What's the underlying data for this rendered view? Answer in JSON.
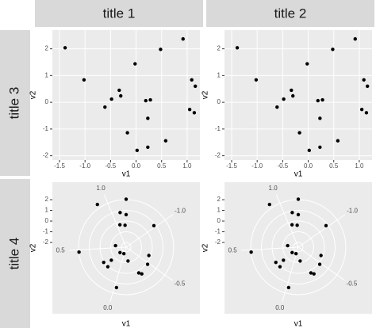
{
  "facet_columns": [
    "title 1",
    "title 2"
  ],
  "facet_rows": [
    "title 3",
    "title 4"
  ],
  "chart_data": [
    {
      "type": "scatter",
      "x_label": "v1",
      "y_label": "v2",
      "x": [
        -1.39,
        -1.02,
        -0.61,
        -0.48,
        -0.33,
        -0.3,
        -0.17,
        -0.02,
        0.02,
        0.19,
        0.28,
        0.23,
        0.23,
        0.48,
        0.58,
        0.92,
        1.05,
        1.09,
        1.14,
        1.16
      ],
      "y": [
        2.04,
        0.84,
        -0.18,
        0.12,
        0.45,
        0.24,
        -1.14,
        1.44,
        -1.8,
        0.06,
        0.09,
        -0.6,
        -1.68,
        1.98,
        -1.44,
        2.37,
        -0.27,
        0.84,
        -0.39,
        0.6
      ],
      "xlim": [
        -1.64,
        1.25
      ],
      "ylim": [
        -2.16,
        2.7
      ],
      "xticks": [
        -1.5,
        {
          "value": -1,
          "label": "-1.0"
        },
        -0.5,
        {
          "value": 0,
          "label": "0.0"
        },
        0.5,
        {
          "value": 1,
          "label": "1.0"
        }
      ],
      "yticks": [
        -2,
        -1,
        0,
        1,
        2
      ]
    },
    {
      "type": "scatter",
      "x_label": "v1",
      "y_label": "v2",
      "x": [
        -1.39,
        -1.02,
        -0.61,
        -0.48,
        -0.33,
        -0.3,
        -0.17,
        -0.02,
        0.02,
        0.19,
        0.28,
        0.23,
        0.23,
        0.48,
        0.58,
        0.92,
        1.05,
        1.09,
        1.14,
        1.16
      ],
      "y": [
        2.04,
        0.84,
        -0.18,
        0.12,
        0.45,
        0.24,
        -1.14,
        1.44,
        -1.8,
        0.06,
        0.09,
        -0.6,
        -1.68,
        1.98,
        -1.44,
        2.37,
        -0.27,
        0.84,
        -0.39,
        0.6
      ],
      "xlim": [
        -1.64,
        1.25
      ],
      "ylim": [
        -2.16,
        2.7
      ],
      "xticks": [
        -1.5,
        {
          "value": -1,
          "label": "-1.0"
        },
        -0.5,
        {
          "value": 0,
          "label": "0.0"
        },
        0.5,
        {
          "value": 1,
          "label": "1.0"
        }
      ],
      "yticks": [
        -2,
        -1,
        0,
        1,
        2
      ]
    },
    {
      "type": "polar",
      "x_label": "v1",
      "y_label": "v2",
      "x": [
        -1.39,
        -1.02,
        -0.61,
        -0.48,
        -0.33,
        -0.3,
        -0.17,
        -0.02,
        0.02,
        0.19,
        0.28,
        0.23,
        0.23,
        0.48,
        0.58,
        0.92,
        1.05,
        1.09,
        1.14,
        1.16
      ],
      "y": [
        2.04,
        0.84,
        -0.18,
        0.12,
        0.45,
        0.24,
        -1.14,
        1.44,
        -1.8,
        0.06,
        0.09,
        -0.6,
        -1.68,
        1.98,
        -1.44,
        2.37,
        -0.27,
        0.84,
        -0.39,
        0.6
      ],
      "thetalim": [
        -1.39,
        1.16
      ],
      "rlim": [
        -2.44,
        2.89
      ],
      "thetaticks": [
        {
          "value": -1,
          "label": "-1.0"
        },
        -0.5,
        {
          "value": 0,
          "label": "0.0"
        },
        0.5,
        {
          "value": 1,
          "label": "1.0"
        }
      ],
      "rticks": [
        -2,
        -1,
        0,
        1,
        2
      ]
    },
    {
      "type": "polar",
      "x_label": "v1",
      "y_label": "v2",
      "x": [
        -1.39,
        -1.02,
        -0.61,
        -0.48,
        -0.33,
        -0.3,
        -0.17,
        -0.02,
        0.02,
        0.19,
        0.28,
        0.23,
        0.23,
        0.48,
        0.58,
        0.92,
        1.05,
        1.09,
        1.14,
        1.16
      ],
      "y": [
        2.04,
        0.84,
        -0.18,
        0.12,
        0.45,
        0.24,
        -1.14,
        1.44,
        -1.8,
        0.06,
        0.09,
        -0.6,
        -1.68,
        1.98,
        -1.44,
        2.37,
        -0.27,
        0.84,
        -0.39,
        0.6
      ],
      "thetalim": [
        -1.39,
        1.16
      ],
      "rlim": [
        -2.44,
        2.89
      ],
      "thetaticks": [
        {
          "value": -1,
          "label": "-1.0"
        },
        -0.5,
        {
          "value": 0,
          "label": "0.0"
        },
        0.5,
        {
          "value": 1,
          "label": "1.0"
        }
      ],
      "rticks": [
        -2,
        -1,
        0,
        1,
        2
      ]
    }
  ]
}
